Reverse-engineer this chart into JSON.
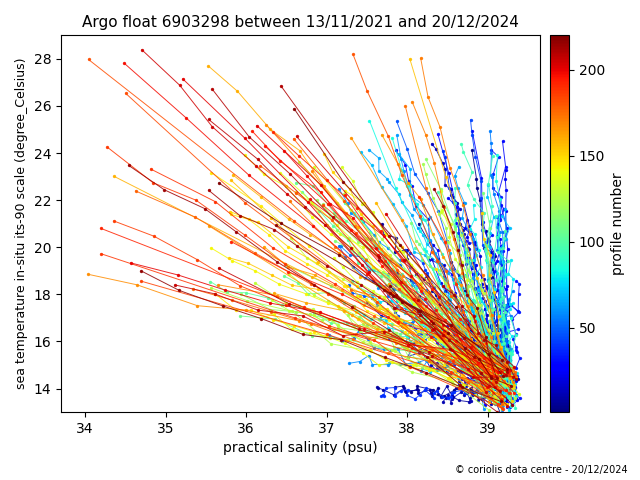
{
  "title": "Argo float 6903298 between 13/11/2021 and 20/12/2024",
  "xlabel": "practical salinity (psu)",
  "ylabel": "sea temperature in-situ its-90 scale (degree_Celsius)",
  "colorbar_label": "profile number",
  "copyright": "© coriolis data centre - 20/12/2024",
  "xlim": [
    33.7,
    39.65
  ],
  "ylim": [
    13.0,
    29.0
  ],
  "xticks": [
    34,
    35,
    36,
    37,
    38,
    39
  ],
  "yticks": [
    14,
    16,
    18,
    20,
    22,
    24,
    26,
    28
  ],
  "colorbar_ticks": [
    50,
    100,
    150,
    200
  ],
  "n_profiles": 220,
  "seed": 42,
  "cmap": "jet",
  "vmin": 1,
  "vmax": 220,
  "figsize": [
    6.4,
    4.8
  ],
  "dpi": 100
}
